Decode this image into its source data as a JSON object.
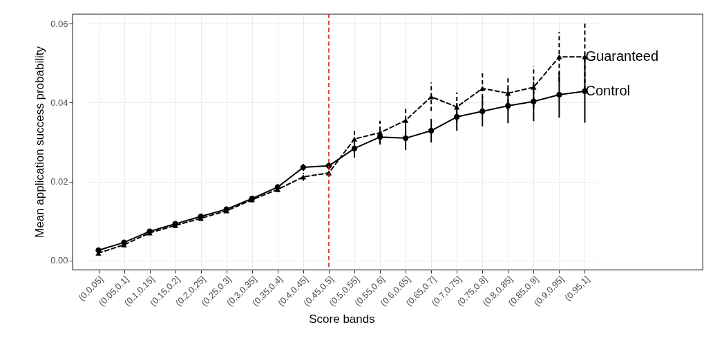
{
  "chart_data": {
    "type": "line",
    "xlabel": "Score bands",
    "ylabel": "Mean application success probability",
    "categories": [
      "(0,0.05]",
      "(0.05,0.1]",
      "(0.1,0.15]",
      "(0.15,0.2]",
      "(0.2,0.25]",
      "(0.25,0.3]",
      "(0.3,0.35]",
      "(0.35,0.4]",
      "(0.4,0.45]",
      "(0.45,0.5]",
      "(0.5,0.55]",
      "(0.55,0.6]",
      "(0.6,0.65]",
      "(0.65,0.7]",
      "(0.7,0.75]",
      "(0.75,0.8]",
      "(0.8,0.85]",
      "(0.85,0.9]",
      "(0.9,0.95]",
      "(0.95,1]"
    ],
    "series": [
      {
        "name": "Control",
        "color": "#000000",
        "line_style": "solid",
        "marker": "circle",
        "values": [
          0.0026,
          0.0046,
          0.0074,
          0.0093,
          0.0112,
          0.013,
          0.0157,
          0.0186,
          0.0236,
          0.024,
          0.0284,
          0.0313,
          0.031,
          0.0329,
          0.0364,
          0.0378,
          0.0392,
          0.0403,
          0.042,
          0.0429
        ],
        "errors": [
          0.0005,
          0.0005,
          0.0005,
          0.0005,
          0.0005,
          0.0005,
          0.0006,
          0.0007,
          0.0009,
          0.0009,
          0.0023,
          0.0018,
          0.003,
          0.003,
          0.0035,
          0.0038,
          0.0044,
          0.005,
          0.0058,
          0.008
        ]
      },
      {
        "name": "Guaranteed",
        "color": "#000000",
        "line_style": "dashed",
        "marker": "triangle",
        "values": [
          0.0019,
          0.004,
          0.007,
          0.0089,
          0.0107,
          0.0126,
          0.0154,
          0.018,
          0.0212,
          0.0222,
          0.0308,
          0.0324,
          0.0355,
          0.0415,
          0.0389,
          0.0436,
          0.0424,
          0.0439,
          0.0516,
          0.0516
        ],
        "errors": [
          0.0005,
          0.0005,
          0.0005,
          0.0005,
          0.0005,
          0.0005,
          0.0006,
          0.0007,
          0.001,
          0.001,
          0.0025,
          0.003,
          0.0034,
          0.0036,
          0.0037,
          0.0042,
          0.0043,
          0.0053,
          0.0063,
          0.0084
        ]
      }
    ],
    "ylim": [
      -0.0023,
      0.0625
    ],
    "yticks": [
      {
        "value": 0,
        "label": "0.00"
      },
      {
        "value": 0.02,
        "label": "0.02"
      },
      {
        "value": 0.04,
        "label": "0.04"
      },
      {
        "value": 0.06,
        "label": "0.06"
      }
    ],
    "ref_lines": [
      {
        "axis": "x",
        "value": "(0.45,0.5]",
        "color": "#ff0000",
        "line_style": "dashed"
      }
    ],
    "grid": true,
    "legend": false
  }
}
